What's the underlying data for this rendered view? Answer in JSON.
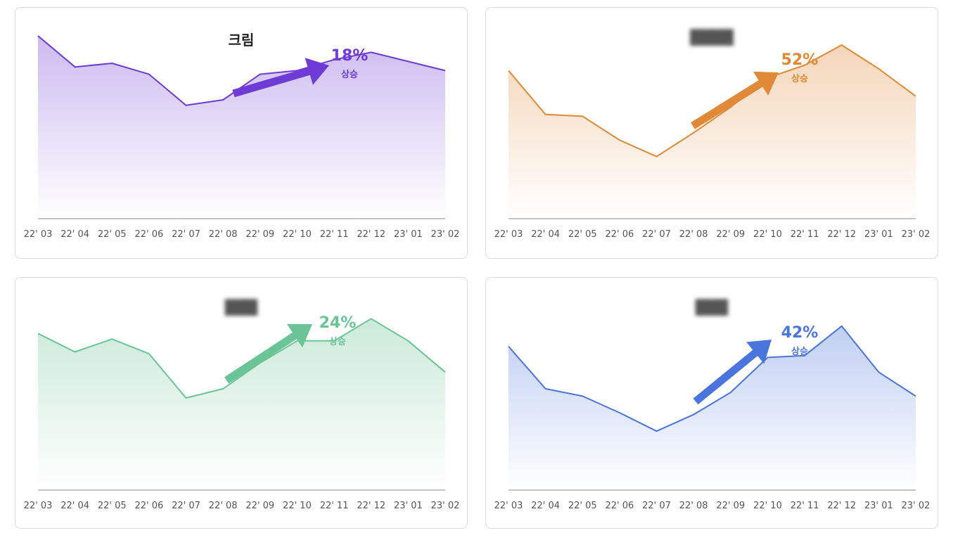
{
  "chart_data": [
    {
      "type": "area",
      "title": "크림",
      "title_legible": true,
      "categories": [
        "22' 03",
        "22' 04",
        "22' 05",
        "22' 06",
        "22' 07",
        "22' 08",
        "22' 09",
        "22' 10",
        "22' 11",
        "22' 12",
        "23' 01",
        "23' 02"
      ],
      "values": [
        100,
        83,
        85,
        79,
        62,
        65,
        79,
        81,
        87,
        91,
        86,
        81
      ],
      "ylim": [
        0,
        100
      ],
      "color": "#6e3bd6",
      "change_value": "18%",
      "change_label": "상승"
    },
    {
      "type": "area",
      "title": "",
      "title_legible": false,
      "categories": [
        "22' 03",
        "22' 04",
        "22' 05",
        "22' 06",
        "22' 07",
        "22' 08",
        "22' 09",
        "22' 10",
        "22' 11",
        "22' 12",
        "23' 01",
        "23' 02"
      ],
      "values": [
        81,
        57,
        56,
        43,
        34,
        47,
        61,
        77,
        84,
        95,
        82,
        67
      ],
      "ylim": [
        0,
        100
      ],
      "color": "#e08936",
      "change_value": "52%",
      "change_label": "상승"
    },
    {
      "type": "area",
      "title": "",
      "title_legible": false,
      "categories": [
        "22' 03",
        "22' 04",
        "22' 05",
        "22' 06",
        "22' 07",
        "22' 08",
        "22' 09",
        "22' 10",
        "22' 11",
        "22' 12",
        "23' 01",
        "23' 02"
      ],
      "values": [
        85,
        75,
        82,
        74,
        50,
        55,
        69,
        81,
        81,
        93,
        81,
        64
      ],
      "ylim": [
        0,
        100
      ],
      "color": "#6bc495",
      "change_value": "24%",
      "change_label": "상승"
    },
    {
      "type": "area",
      "title": "",
      "title_legible": false,
      "categories": [
        "22' 03",
        "22' 04",
        "22' 05",
        "22' 06",
        "22' 07",
        "22' 08",
        "22' 09",
        "22' 10",
        "22' 11",
        "22' 12",
        "23' 01",
        "23' 02"
      ],
      "values": [
        78,
        55,
        51,
        42,
        32,
        41,
        53,
        72,
        73,
        89,
        64,
        51
      ],
      "ylim": [
        0,
        100
      ],
      "color": "#4a75dd",
      "change_value": "42%",
      "change_label": "상승"
    }
  ]
}
